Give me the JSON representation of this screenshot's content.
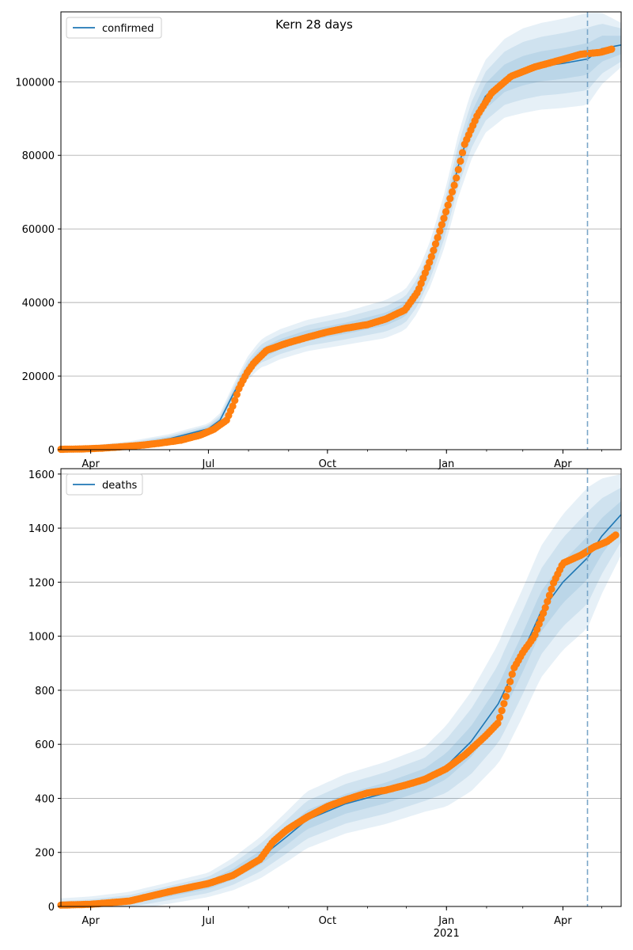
{
  "figure": {
    "title": "Kern 28 days"
  },
  "colors": {
    "fit_line": "#1f77b4",
    "observed": "#ff7f0e",
    "band": "#1f77b4",
    "grid": "#b0b0b0",
    "forecast_marker": "#7aa6c8"
  },
  "chart_data": [
    {
      "type": "line",
      "title": "Kern 28 days",
      "legend": {
        "label": "confirmed",
        "placement": "top-left"
      },
      "xlabel": "",
      "ylabel": "",
      "x_range": [
        "2020-03-09",
        "2021-05-16"
      ],
      "ylim": [
        0,
        119000
      ],
      "y_ticks": [
        0,
        20000,
        40000,
        60000,
        80000,
        100000
      ],
      "x_ticks": [
        {
          "date": "2020-04-01",
          "label": "Apr",
          "sub": ""
        },
        {
          "date": "2020-07-01",
          "label": "Jul",
          "sub": ""
        },
        {
          "date": "2020-10-01",
          "label": "Oct",
          "sub": ""
        },
        {
          "date": "2021-01-01",
          "label": "Jan",
          "sub": "2021"
        },
        {
          "date": "2021-04-01",
          "label": "Apr",
          "sub": ""
        }
      ],
      "grid": "horizontal",
      "forecast_start": "2021-04-20",
      "fit": [
        {
          "date": "2020-03-09",
          "value": 0
        },
        {
          "date": "2020-04-01",
          "value": 200
        },
        {
          "date": "2020-05-01",
          "value": 1200
        },
        {
          "date": "2020-06-01",
          "value": 3000
        },
        {
          "date": "2020-07-01",
          "value": 5700
        },
        {
          "date": "2020-07-10",
          "value": 8000
        },
        {
          "date": "2020-07-20",
          "value": 15000
        },
        {
          "date": "2020-07-31",
          "value": 22000
        },
        {
          "date": "2020-08-10",
          "value": 26000
        },
        {
          "date": "2020-08-25",
          "value": 28600
        },
        {
          "date": "2020-09-15",
          "value": 31000
        },
        {
          "date": "2020-10-15",
          "value": 33000
        },
        {
          "date": "2020-11-15",
          "value": 35500
        },
        {
          "date": "2020-11-30",
          "value": 38000
        },
        {
          "date": "2020-12-10",
          "value": 43000
        },
        {
          "date": "2020-12-20",
          "value": 51000
        },
        {
          "date": "2020-12-31",
          "value": 63000
        },
        {
          "date": "2021-01-10",
          "value": 77000
        },
        {
          "date": "2021-01-20",
          "value": 88000
        },
        {
          "date": "2021-01-31",
          "value": 96000
        },
        {
          "date": "2021-02-15",
          "value": 101000
        },
        {
          "date": "2021-03-01",
          "value": 103000
        },
        {
          "date": "2021-03-15",
          "value": 104200
        },
        {
          "date": "2021-04-01",
          "value": 105000
        },
        {
          "date": "2021-04-20",
          "value": 106200
        },
        {
          "date": "2021-05-01",
          "value": 109000
        },
        {
          "date": "2021-05-16",
          "value": 110000
        }
      ],
      "observed": [
        {
          "date": "2020-03-09",
          "value": 100
        },
        {
          "date": "2020-03-25",
          "value": 200
        },
        {
          "date": "2020-04-10",
          "value": 400
        },
        {
          "date": "2020-04-25",
          "value": 800
        },
        {
          "date": "2020-05-10",
          "value": 1200
        },
        {
          "date": "2020-05-25",
          "value": 1800
        },
        {
          "date": "2020-06-10",
          "value": 2600
        },
        {
          "date": "2020-06-25",
          "value": 4000
        },
        {
          "date": "2020-07-05",
          "value": 5500
        },
        {
          "date": "2020-07-15",
          "value": 8000
        },
        {
          "date": "2020-07-20",
          "value": 12000
        },
        {
          "date": "2020-07-25",
          "value": 17000
        },
        {
          "date": "2020-07-31",
          "value": 21000
        },
        {
          "date": "2020-08-05",
          "value": 23500
        },
        {
          "date": "2020-08-15",
          "value": 27000
        },
        {
          "date": "2020-08-31",
          "value": 29000
        },
        {
          "date": "2020-09-15",
          "value": 30500
        },
        {
          "date": "2020-10-01",
          "value": 32000
        },
        {
          "date": "2020-10-15",
          "value": 33000
        },
        {
          "date": "2020-11-01",
          "value": 34000
        },
        {
          "date": "2020-11-15",
          "value": 35500
        },
        {
          "date": "2020-11-30",
          "value": 38000
        },
        {
          "date": "2020-12-10",
          "value": 43000
        },
        {
          "date": "2020-12-20",
          "value": 52000
        },
        {
          "date": "2020-12-31",
          "value": 64000
        },
        {
          "date": "2021-01-08",
          "value": 73000
        },
        {
          "date": "2021-01-15",
          "value": 83000
        },
        {
          "date": "2021-01-25",
          "value": 91000
        },
        {
          "date": "2021-02-05",
          "value": 97000
        },
        {
          "date": "2021-02-20",
          "value": 101500
        },
        {
          "date": "2021-03-10",
          "value": 104000
        },
        {
          "date": "2021-03-31",
          "value": 106000
        },
        {
          "date": "2021-04-15",
          "value": 107500
        },
        {
          "date": "2021-04-30",
          "value": 108000
        },
        {
          "date": "2021-05-10",
          "value": 109000
        }
      ],
      "bands_halfwidth": [
        {
          "date": "2020-03-09",
          "values": [
            300,
            500,
            800
          ]
        },
        {
          "date": "2020-07-01",
          "values": [
            500,
            900,
            1400
          ]
        },
        {
          "date": "2020-08-15",
          "values": [
            1400,
            2600,
            4000
          ]
        },
        {
          "date": "2020-10-15",
          "values": [
            1500,
            3000,
            4500
          ]
        },
        {
          "date": "2020-12-15",
          "values": [
            2000,
            3800,
            5800
          ]
        },
        {
          "date": "2021-01-15",
          "values": [
            3200,
            6000,
            9000
          ]
        },
        {
          "date": "2021-03-01",
          "values": [
            4000,
            7800,
            11500
          ]
        },
        {
          "date": "2021-04-20",
          "values": [
            4300,
            8500,
            12500
          ]
        },
        {
          "date": "2021-05-16",
          "values": [
            2500,
            4500,
            6000
          ]
        }
      ]
    },
    {
      "type": "line",
      "title": "",
      "legend": {
        "label": "deaths",
        "placement": "top-left"
      },
      "xlabel": "",
      "ylabel": "",
      "x_range": [
        "2020-03-09",
        "2021-05-16"
      ],
      "ylim": [
        0,
        1620
      ],
      "y_ticks": [
        0,
        200,
        400,
        600,
        800,
        1000,
        1200,
        1400,
        1600
      ],
      "x_ticks": [
        {
          "date": "2020-04-01",
          "label": "Apr",
          "sub": ""
        },
        {
          "date": "2020-07-01",
          "label": "Jul",
          "sub": ""
        },
        {
          "date": "2020-10-01",
          "label": "Oct",
          "sub": ""
        },
        {
          "date": "2021-01-01",
          "label": "Jan",
          "sub": "2021"
        },
        {
          "date": "2021-04-01",
          "label": "Apr",
          "sub": ""
        }
      ],
      "grid": "horizontal",
      "forecast_start": "2021-04-20",
      "fit": [
        {
          "date": "2020-03-09",
          "value": 5
        },
        {
          "date": "2020-04-01",
          "value": 8
        },
        {
          "date": "2020-05-01",
          "value": 20
        },
        {
          "date": "2020-06-01",
          "value": 50
        },
        {
          "date": "2020-07-01",
          "value": 80
        },
        {
          "date": "2020-07-20",
          "value": 120
        },
        {
          "date": "2020-08-10",
          "value": 180
        },
        {
          "date": "2020-08-31",
          "value": 260
        },
        {
          "date": "2020-09-15",
          "value": 320
        },
        {
          "date": "2020-10-15",
          "value": 380
        },
        {
          "date": "2020-11-15",
          "value": 420
        },
        {
          "date": "2020-12-15",
          "value": 470
        },
        {
          "date": "2021-01-01",
          "value": 520
        },
        {
          "date": "2021-01-20",
          "value": 610
        },
        {
          "date": "2021-02-10",
          "value": 750
        },
        {
          "date": "2021-02-28",
          "value": 930
        },
        {
          "date": "2021-03-15",
          "value": 1090
        },
        {
          "date": "2021-04-01",
          "value": 1200
        },
        {
          "date": "2021-04-20",
          "value": 1290
        },
        {
          "date": "2021-05-01",
          "value": 1370
        },
        {
          "date": "2021-05-16",
          "value": 1450
        }
      ],
      "observed": [
        {
          "date": "2020-03-09",
          "value": 5
        },
        {
          "date": "2020-04-01",
          "value": 8
        },
        {
          "date": "2020-05-01",
          "value": 20
        },
        {
          "date": "2020-06-01",
          "value": 55
        },
        {
          "date": "2020-07-01",
          "value": 85
        },
        {
          "date": "2020-07-20",
          "value": 115
        },
        {
          "date": "2020-08-10",
          "value": 175
        },
        {
          "date": "2020-08-20",
          "value": 240
        },
        {
          "date": "2020-08-31",
          "value": 285
        },
        {
          "date": "2020-09-15",
          "value": 330
        },
        {
          "date": "2020-10-01",
          "value": 370
        },
        {
          "date": "2020-10-15",
          "value": 395
        },
        {
          "date": "2020-11-01",
          "value": 420
        },
        {
          "date": "2020-11-15",
          "value": 430
        },
        {
          "date": "2020-12-01",
          "value": 450
        },
        {
          "date": "2020-12-15",
          "value": 470
        },
        {
          "date": "2021-01-01",
          "value": 510
        },
        {
          "date": "2021-01-15",
          "value": 560
        },
        {
          "date": "2021-01-31",
          "value": 630
        },
        {
          "date": "2021-02-10",
          "value": 680
        },
        {
          "date": "2021-02-15",
          "value": 760
        },
        {
          "date": "2021-02-22",
          "value": 880
        },
        {
          "date": "2021-03-01",
          "value": 940
        },
        {
          "date": "2021-03-10",
          "value": 1000
        },
        {
          "date": "2021-03-18",
          "value": 1100
        },
        {
          "date": "2021-03-25",
          "value": 1200
        },
        {
          "date": "2021-04-01",
          "value": 1270
        },
        {
          "date": "2021-04-15",
          "value": 1300
        },
        {
          "date": "2021-04-25",
          "value": 1330
        },
        {
          "date": "2021-05-05",
          "value": 1350
        },
        {
          "date": "2021-05-12",
          "value": 1375
        }
      ],
      "bands_halfwidth": [
        {
          "date": "2020-03-09",
          "values": [
            8,
            15,
            25
          ]
        },
        {
          "date": "2020-07-01",
          "values": [
            15,
            30,
            45
          ]
        },
        {
          "date": "2020-09-15",
          "values": [
            35,
            70,
            105
          ]
        },
        {
          "date": "2020-12-15",
          "values": [
            40,
            80,
            120
          ]
        },
        {
          "date": "2021-02-15",
          "values": [
            70,
            150,
            230
          ]
        },
        {
          "date": "2021-04-20",
          "values": [
            80,
            170,
            260
          ]
        },
        {
          "date": "2021-05-16",
          "values": [
            50,
            100,
            150
          ]
        }
      ]
    }
  ]
}
